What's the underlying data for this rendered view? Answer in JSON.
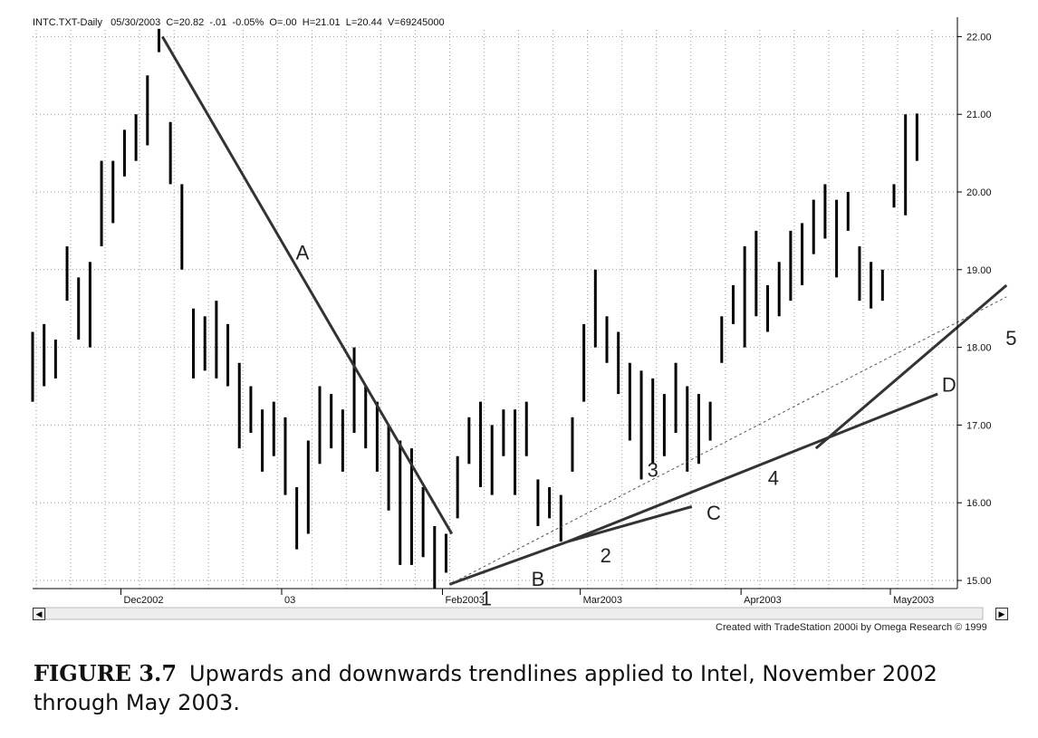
{
  "chart_data": {
    "type": "bar",
    "style": "ohlc",
    "header": "INTC.TXT-Daily   05/30/2003  C=20.82  -.01  -0.05%  O=.00  H=21.01  L=20.44  V=69245000",
    "y_ticks": [
      "15.00",
      "16.00",
      "17.00",
      "18.00",
      "19.00",
      "20.00",
      "21.00",
      "22.00"
    ],
    "ylim": [
      14.9,
      22.05
    ],
    "x_labels": [
      {
        "label": "Dec2002",
        "index": 8
      },
      {
        "label": "03",
        "index": 22
      },
      {
        "label": "Feb2003",
        "index": 36
      },
      {
        "label": "Mar2003",
        "index": 48
      },
      {
        "label": "Apr2003",
        "index": 62
      },
      {
        "label": "May2003",
        "index": 75
      }
    ],
    "bars": [
      [
        17.3,
        18.2
      ],
      [
        17.5,
        18.3
      ],
      [
        17.6,
        18.1
      ],
      [
        18.6,
        19.3
      ],
      [
        18.1,
        18.9
      ],
      [
        18.0,
        19.1
      ],
      [
        19.3,
        20.4
      ],
      [
        19.6,
        20.4
      ],
      [
        20.2,
        20.8
      ],
      [
        20.4,
        21.0
      ],
      [
        20.6,
        21.5
      ],
      [
        21.8,
        22.1
      ],
      [
        20.1,
        20.9
      ],
      [
        19.0,
        20.1
      ],
      [
        17.6,
        18.5
      ],
      [
        17.7,
        18.4
      ],
      [
        17.6,
        18.6
      ],
      [
        17.5,
        18.3
      ],
      [
        16.7,
        17.8
      ],
      [
        16.9,
        17.5
      ],
      [
        16.4,
        17.2
      ],
      [
        16.6,
        17.3
      ],
      [
        16.1,
        17.1
      ],
      [
        15.4,
        16.2
      ],
      [
        15.6,
        16.8
      ],
      [
        16.5,
        17.5
      ],
      [
        16.7,
        17.4
      ],
      [
        16.4,
        17.2
      ],
      [
        16.9,
        18.0
      ],
      [
        16.7,
        17.5
      ],
      [
        16.4,
        17.3
      ],
      [
        15.9,
        17.0
      ],
      [
        15.2,
        16.8
      ],
      [
        15.2,
        16.7
      ],
      [
        15.3,
        16.2
      ],
      [
        14.9,
        15.7
      ],
      [
        15.1,
        15.6
      ],
      [
        15.8,
        16.6
      ],
      [
        16.5,
        17.1
      ],
      [
        16.2,
        17.3
      ],
      [
        16.1,
        17.0
      ],
      [
        16.6,
        17.2
      ],
      [
        16.1,
        17.2
      ],
      [
        16.6,
        17.3
      ],
      [
        15.7,
        16.3
      ],
      [
        15.8,
        16.2
      ],
      [
        15.5,
        16.1
      ],
      [
        16.4,
        17.1
      ],
      [
        17.3,
        18.3
      ],
      [
        18.0,
        19.0
      ],
      [
        17.8,
        18.4
      ],
      [
        17.4,
        18.2
      ],
      [
        16.8,
        17.8
      ],
      [
        16.3,
        17.7
      ],
      [
        16.5,
        17.6
      ],
      [
        16.6,
        17.4
      ],
      [
        16.9,
        17.8
      ],
      [
        16.4,
        17.5
      ],
      [
        16.5,
        17.4
      ],
      [
        16.8,
        17.3
      ],
      [
        17.8,
        18.4
      ],
      [
        18.3,
        18.8
      ],
      [
        18.0,
        19.3
      ],
      [
        18.4,
        19.5
      ],
      [
        18.2,
        18.8
      ],
      [
        18.4,
        19.1
      ],
      [
        18.6,
        19.5
      ],
      [
        18.8,
        19.6
      ],
      [
        19.2,
        19.9
      ],
      [
        19.4,
        20.1
      ],
      [
        18.9,
        19.9
      ],
      [
        19.5,
        20.0
      ],
      [
        18.6,
        19.3
      ],
      [
        18.5,
        19.1
      ],
      [
        18.6,
        19.0
      ],
      [
        19.8,
        20.1
      ],
      [
        19.7,
        21.0
      ],
      [
        20.4,
        21.01
      ]
    ],
    "trendlines": [
      {
        "label": "A",
        "from": [
          11.3,
          22.0
        ],
        "to": [
          36.5,
          15.6
        ],
        "weight": "heavy"
      },
      {
        "label": "B",
        "from": [
          36.3,
          14.95
        ],
        "to": [
          46.6,
          15.5
        ],
        "weight": "heavy"
      },
      {
        "label": "C",
        "from": [
          46.6,
          15.5
        ],
        "to": [
          57.4,
          15.95
        ],
        "weight": "heavy"
      },
      {
        "label": "D",
        "from": [
          46.6,
          15.5
        ],
        "to": [
          78.8,
          17.4
        ],
        "weight": "heavy"
      },
      {
        "label": "5",
        "from": [
          68.2,
          16.7
        ],
        "to": [
          84.8,
          18.8
        ],
        "weight": "heavy"
      },
      {
        "label": "",
        "from": [
          36.3,
          14.95
        ],
        "to": [
          84.8,
          18.65
        ],
        "weight": "dashed"
      }
    ],
    "annotations": [
      {
        "text": "A",
        "x": 23.5,
        "y": 19.2
      },
      {
        "text": "B",
        "x": 44.0,
        "y": 15.0
      },
      {
        "text": "1",
        "x": 39.5,
        "y": 14.75
      },
      {
        "text": "2",
        "x": 49.9,
        "y": 15.3
      },
      {
        "text": "3",
        "x": 54.0,
        "y": 16.4
      },
      {
        "text": "C",
        "x": 59.3,
        "y": 15.85
      },
      {
        "text": "4",
        "x": 64.5,
        "y": 16.3
      },
      {
        "text": "D",
        "x": 79.8,
        "y": 17.5
      },
      {
        "text": "5",
        "x": 85.2,
        "y": 18.1
      }
    ],
    "grid": true,
    "colors": {
      "bar": "#000000",
      "trend": "#333333",
      "grid": "#9a9a9a"
    }
  },
  "credit": "Created with TradeStation 2000i by Omega Research © 1999",
  "caption": {
    "figure": "FIGURE 3.7",
    "text": "Upwards and downwards trendlines applied to Intel, November 2002 through May 2003."
  }
}
